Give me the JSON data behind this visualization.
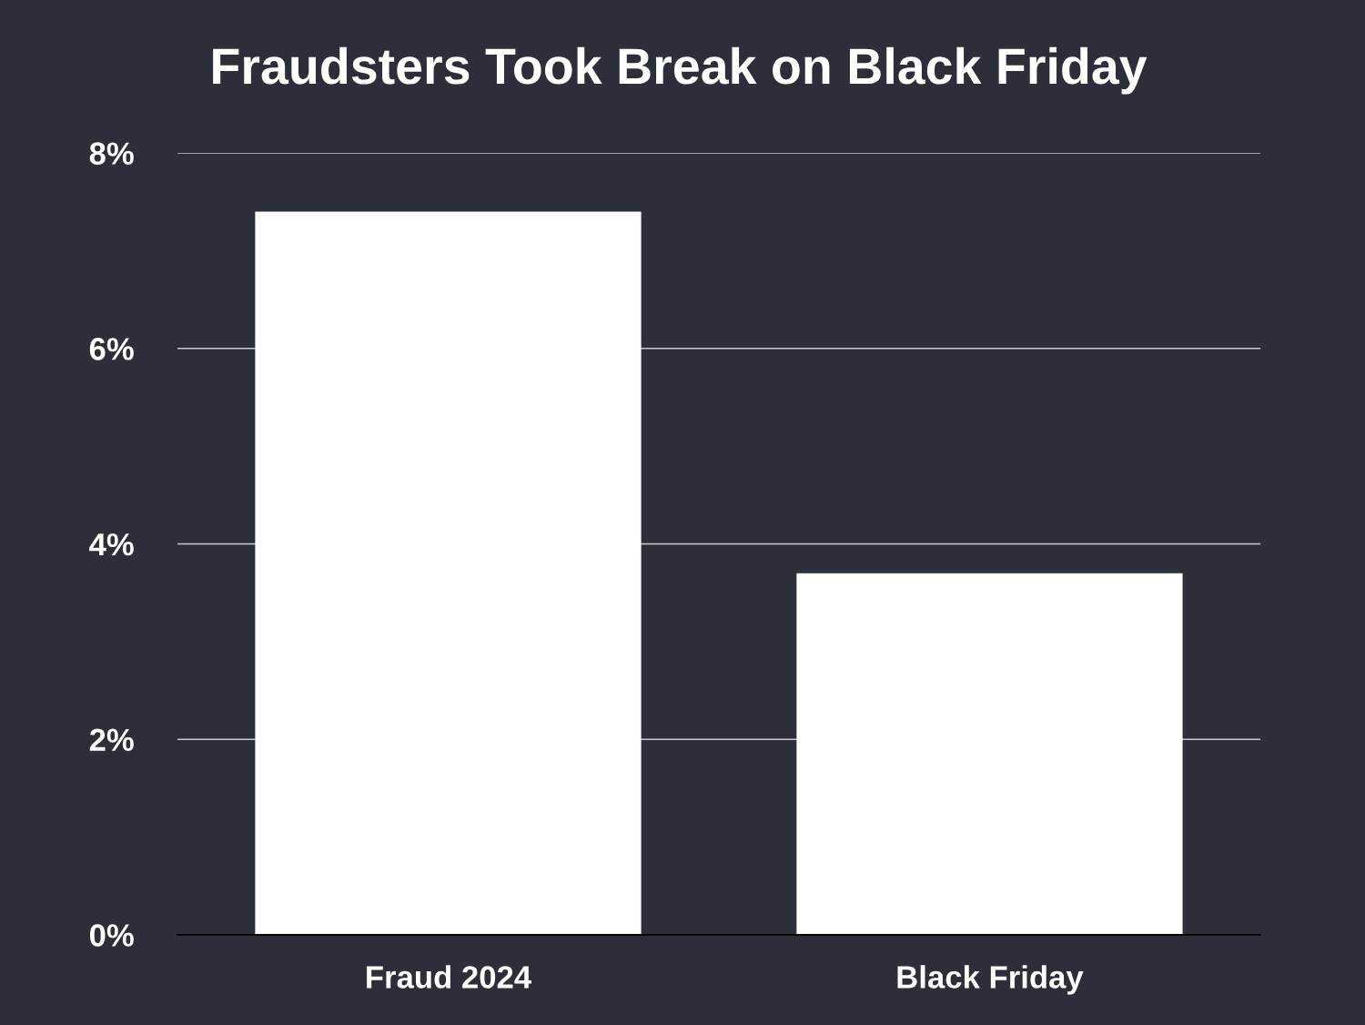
{
  "chart_data": {
    "type": "bar",
    "title": "Fraudsters Took Break on Black Friday",
    "categories": [
      "Fraud 2024",
      "Black Friday"
    ],
    "values": [
      7.4,
      3.7
    ],
    "color": "#ffffff",
    "ylim": [
      0,
      8
    ],
    "yticks": [
      {
        "value": 0,
        "label": "0%"
      },
      {
        "value": 2,
        "label": "2%"
      },
      {
        "value": 4,
        "label": "4%"
      },
      {
        "value": 6,
        "label": "6%"
      },
      {
        "value": 8,
        "label": "8%"
      }
    ],
    "grid": "y"
  }
}
